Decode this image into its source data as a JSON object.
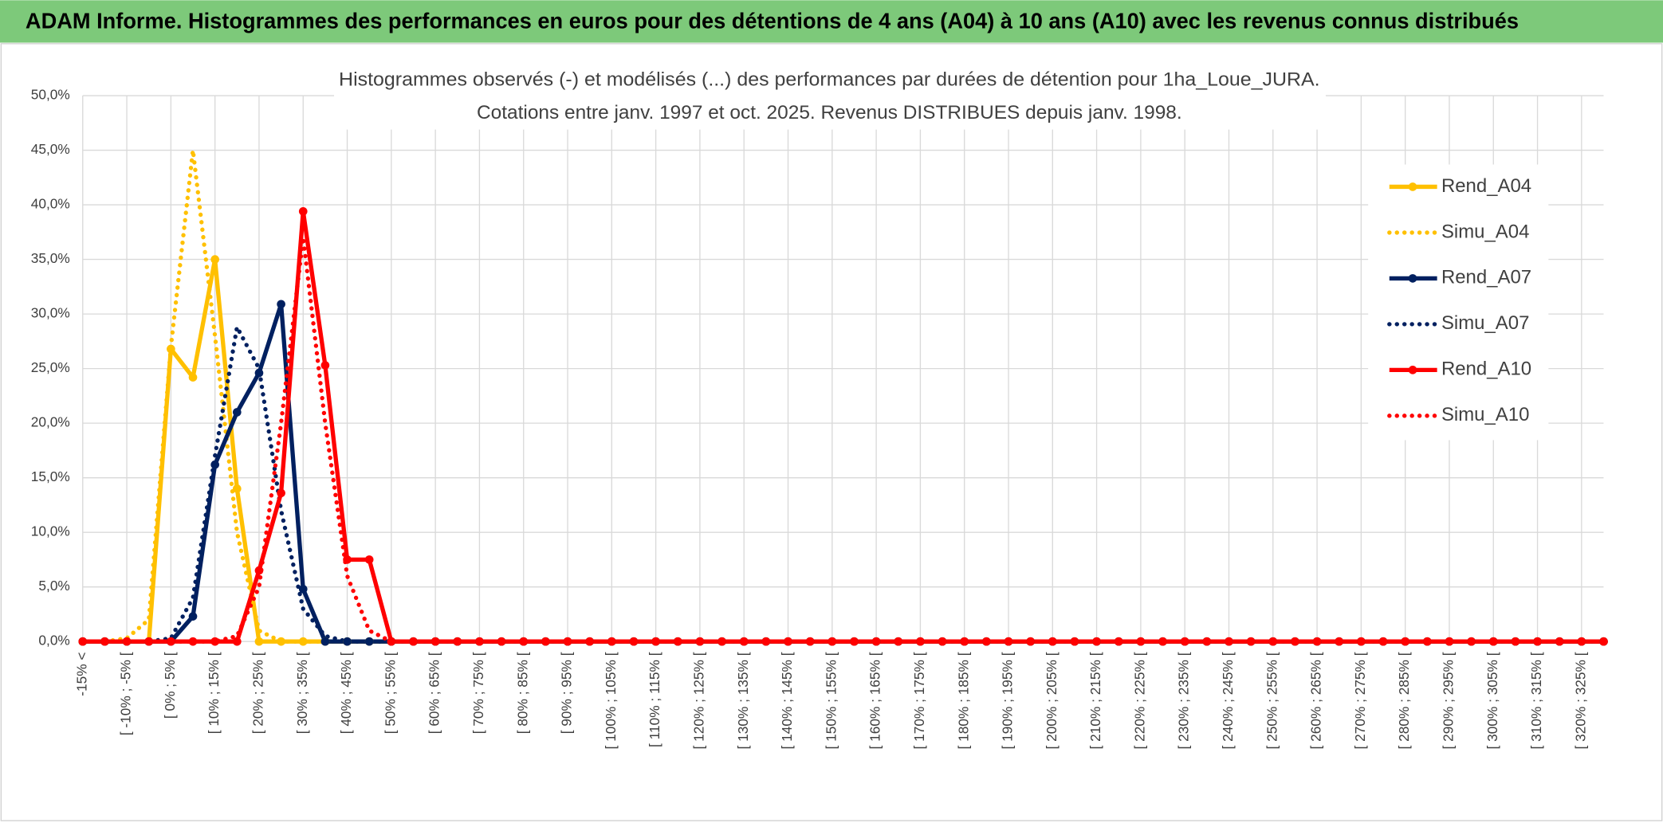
{
  "header": {
    "title": "ADAM Informe. Histogrammes des performances en euros pour des détentions de 4 ans (A04) à 10 ans (A10) avec les revenus connus distribués"
  },
  "chart_data": {
    "type": "line",
    "title": [
      "Histogrammes observés (-) et modélisés (...) des performances par durées de détention pour 1ha_Loue_JURA.",
      "Cotations entre janv. 1997 et oct. 2025. Revenus DISTRIBUES depuis janv. 1998."
    ],
    "categories": [
      "-15% <",
      null,
      "[ -10% ; -5% [",
      null,
      "[ 0% ; 5% [",
      null,
      "[ 10% ; 15% [",
      null,
      "[ 20% ; 25% [",
      null,
      "[ 30% ; 35% [",
      null,
      "[ 40% ; 45% [",
      null,
      "[ 50% ; 55% [",
      null,
      "[ 60% ; 65% [",
      null,
      "[ 70% ; 75% [",
      null,
      "[ 80% ; 85% [",
      null,
      "[ 90% ; 95% [",
      null,
      "[ 100% ; 105% [",
      null,
      "[ 110% ; 115% [",
      null,
      "[ 120% ; 125% [",
      null,
      "[ 130% ; 135% [",
      null,
      "[ 140% ; 145% [",
      null,
      "[ 150% ; 155% [",
      null,
      "[ 160% ; 165% [",
      null,
      "[ 170% ; 175% [",
      null,
      "[ 180% ; 185% [",
      null,
      "[ 190% ; 195% [",
      null,
      "[ 200% ; 205% [",
      null,
      "[ 210% ; 215% [",
      null,
      "[ 220% ; 225% [",
      null,
      "[ 230% ; 235% [",
      null,
      "[ 240% ; 245% [",
      null,
      "[ 250% ; 255% [",
      null,
      "[ 260% ; 265% [",
      null,
      "[ 270% ; 275% [",
      null,
      "[ 280% ; 285% [",
      null,
      "[ 290% ; 295% [",
      null,
      "[ 300% ; 305% [",
      null,
      "[ 310% ; 315% [",
      null,
      "[ 320% ; 325% [",
      null
    ],
    "series": [
      {
        "name": "Rend_A04",
        "color": "#FFC000",
        "style": "solid",
        "markers": true,
        "values": [
          0,
          0,
          0,
          0,
          26.8,
          24.2,
          35,
          14,
          0,
          0,
          0,
          0,
          0,
          0,
          0,
          0,
          0,
          0,
          0,
          0,
          0,
          0,
          0,
          0,
          0,
          0,
          0,
          0,
          0,
          0,
          0,
          0,
          0,
          0,
          0,
          0,
          0,
          0,
          0,
          0,
          0,
          0,
          0,
          0,
          0,
          0,
          0,
          0,
          0,
          0,
          0,
          0,
          0,
          0,
          0,
          0,
          0,
          0,
          0,
          0,
          0,
          0,
          0,
          0,
          0,
          0,
          0,
          0,
          0,
          0
        ]
      },
      {
        "name": "Simu_A04",
        "color": "#FFC000",
        "style": "dotted",
        "markers": false,
        "values": [
          0,
          0,
          0.3,
          2,
          27,
          45,
          28,
          10,
          1,
          0,
          0,
          0,
          0,
          0,
          0,
          0,
          0,
          0,
          0,
          0,
          0,
          0,
          0,
          0,
          0,
          0,
          0,
          0,
          0,
          0,
          0,
          0,
          0,
          0,
          0,
          0,
          0,
          0,
          0,
          0,
          0,
          0,
          0,
          0,
          0,
          0,
          0,
          0,
          0,
          0,
          0,
          0,
          0,
          0,
          0,
          0,
          0,
          0,
          0,
          0,
          0,
          0,
          0,
          0,
          0,
          0,
          0,
          0,
          0,
          0
        ]
      },
      {
        "name": "Rend_A07",
        "color": "#002060",
        "style": "solid",
        "markers": true,
        "values": [
          0,
          0,
          0,
          0,
          0,
          2.3,
          16.2,
          21,
          24.6,
          30.9,
          4.8,
          0,
          0,
          0,
          0,
          0,
          0,
          0,
          0,
          0,
          0,
          0,
          0,
          0,
          0,
          0,
          0,
          0,
          0,
          0,
          0,
          0,
          0,
          0,
          0,
          0,
          0,
          0,
          0,
          0,
          0,
          0,
          0,
          0,
          0,
          0,
          0,
          0,
          0,
          0,
          0,
          0,
          0,
          0,
          0,
          0,
          0,
          0,
          0,
          0,
          0,
          0,
          0,
          0,
          0,
          0,
          0,
          0,
          0,
          0
        ]
      },
      {
        "name": "Simu_A07",
        "color": "#002060",
        "style": "dotted",
        "markers": false,
        "values": [
          0,
          0,
          0,
          0,
          0.3,
          4,
          17,
          28.8,
          25,
          12,
          3,
          0.5,
          0,
          0,
          0,
          0,
          0,
          0,
          0,
          0,
          0,
          0,
          0,
          0,
          0,
          0,
          0,
          0,
          0,
          0,
          0,
          0,
          0,
          0,
          0,
          0,
          0,
          0,
          0,
          0,
          0,
          0,
          0,
          0,
          0,
          0,
          0,
          0,
          0,
          0,
          0,
          0,
          0,
          0,
          0,
          0,
          0,
          0,
          0,
          0,
          0,
          0,
          0,
          0,
          0,
          0,
          0,
          0,
          0,
          0
        ]
      },
      {
        "name": "Rend_A10",
        "color": "#FF0000",
        "style": "solid",
        "markers": true,
        "values": [
          0,
          0,
          0,
          0,
          0,
          0,
          0,
          0,
          6.5,
          13.6,
          39.4,
          25.3,
          7.5,
          7.5,
          0,
          0,
          0,
          0,
          0,
          0,
          0,
          0,
          0,
          0,
          0,
          0,
          0,
          0,
          0,
          0,
          0,
          0,
          0,
          0,
          0,
          0,
          0,
          0,
          0,
          0,
          0,
          0,
          0,
          0,
          0,
          0,
          0,
          0,
          0,
          0,
          0,
          0,
          0,
          0,
          0,
          0,
          0,
          0,
          0,
          0,
          0,
          0,
          0,
          0,
          0,
          0,
          0,
          0,
          0,
          0
        ]
      },
      {
        "name": "Simu_A10",
        "color": "#FF0000",
        "style": "dotted",
        "markers": false,
        "values": [
          0,
          0,
          0,
          0,
          0,
          0,
          0,
          0.5,
          5,
          20,
          37,
          20,
          6,
          1,
          0,
          0,
          0,
          0,
          0,
          0,
          0,
          0,
          0,
          0,
          0,
          0,
          0,
          0,
          0,
          0,
          0,
          0,
          0,
          0,
          0,
          0,
          0,
          0,
          0,
          0,
          0,
          0,
          0,
          0,
          0,
          0,
          0,
          0,
          0,
          0,
          0,
          0,
          0,
          0,
          0,
          0,
          0,
          0,
          0,
          0,
          0,
          0,
          0,
          0,
          0,
          0,
          0,
          0,
          0,
          0
        ]
      }
    ],
    "ylim": [
      0,
      50
    ],
    "yticks": [
      {
        "value": 0,
        "label": "0,0%"
      },
      {
        "value": 5,
        "label": "5,0%"
      },
      {
        "value": 10,
        "label": "10,0%"
      },
      {
        "value": 15,
        "label": "15,0%"
      },
      {
        "value": 20,
        "label": "20,0%"
      },
      {
        "value": 25,
        "label": "25,0%"
      },
      {
        "value": 30,
        "label": "30,0%"
      },
      {
        "value": 35,
        "label": "35,0%"
      },
      {
        "value": 40,
        "label": "40,0%"
      },
      {
        "value": 45,
        "label": "45,0%"
      },
      {
        "value": 50,
        "label": "50,0%"
      }
    ],
    "grid": true,
    "legend": "right"
  }
}
